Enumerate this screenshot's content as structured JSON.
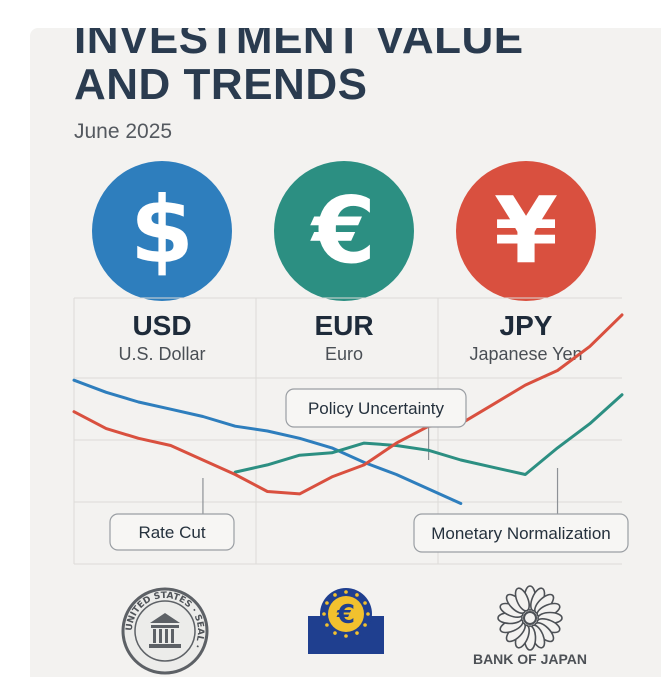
{
  "header": {
    "title": "INVESTMENT VALUE\nAND TRENDS",
    "subtitle": "June 2025"
  },
  "currencies": [
    {
      "code": "USD",
      "name": "U.S. Dollar",
      "symbol": "$",
      "color": "#2e7ebd"
    },
    {
      "code": "EUR",
      "name": "Euro",
      "symbol": "€",
      "color": "#2c8f82"
    },
    {
      "code": "JPY",
      "name": "Japanese Yen",
      "symbol": "¥",
      "color": "#d9503f"
    }
  ],
  "chart_data": {
    "type": "line",
    "title": "",
    "xlabel": "",
    "ylabel": "",
    "grid": true,
    "x": [
      0,
      1,
      2,
      3,
      4,
      5,
      6,
      7,
      8,
      9,
      10,
      11,
      12,
      13,
      14,
      15,
      16,
      17
    ],
    "series": [
      {
        "name": "USD",
        "color": "#2e7ebd",
        "values": [
          7.6,
          7.1,
          6.7,
          6.4,
          6.1,
          5.7,
          5.5,
          5.2,
          4.8,
          4.2,
          3.7,
          3.1,
          2.5,
          null,
          null,
          null,
          null,
          null
        ]
      },
      {
        "name": "EUR",
        "color": "#2c8f82",
        "values": [
          null,
          null,
          null,
          null,
          null,
          3.8,
          4.1,
          4.5,
          4.6,
          5.0,
          4.9,
          4.7,
          4.3,
          4.0,
          3.7,
          4.8,
          5.8,
          7.0
        ]
      },
      {
        "name": "JPY",
        "color": "#d9503f",
        "values": [
          6.3,
          5.6,
          5.2,
          4.9,
          4.3,
          3.7,
          3.0,
          2.9,
          3.6,
          4.1,
          5.0,
          5.7,
          5.8,
          6.6,
          7.4,
          8.0,
          9.0,
          10.3
        ]
      }
    ],
    "annotations": [
      {
        "label": "Rate Cut",
        "x": 4
      },
      {
        "label": "Policy Uncertainty",
        "x": 11
      },
      {
        "label": "Monetary Normalization",
        "x": 15
      }
    ]
  },
  "banks": [
    {
      "name": "Federal Reserve",
      "seal_text": "UNITED STATES · SEAL ·"
    },
    {
      "name": "European Central Bank",
      "symbol": "€"
    },
    {
      "name": "Bank of Japan",
      "label": "BANK OF JAPAN"
    }
  ]
}
